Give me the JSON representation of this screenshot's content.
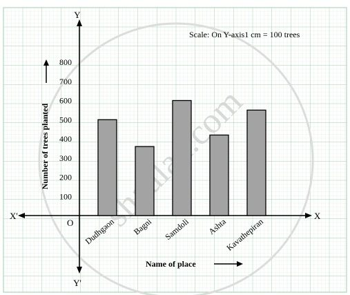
{
  "chart_data": {
    "type": "bar",
    "categories": [
      "Dudhgaon",
      "Bagni",
      "Samdoli",
      "Ashta",
      "Kavathepiran"
    ],
    "values": [
      500,
      360,
      600,
      420,
      550
    ],
    "ylabel": "Number of trees planted",
    "xlabel": "Name of place",
    "yticks": [
      100,
      200,
      300,
      400,
      500,
      600,
      700,
      800
    ],
    "ylim": [
      0,
      800
    ],
    "scale_note": "Scale: On Y-axis1 cm = 100 trees",
    "axis_labels": {
      "x_pos": "X",
      "x_neg": "X'",
      "y_pos": "Y",
      "y_neg": "Y'",
      "origin": "O"
    },
    "watermark": "shaalaa.com",
    "grid": true,
    "bar_color": "#a3a3a3"
  }
}
